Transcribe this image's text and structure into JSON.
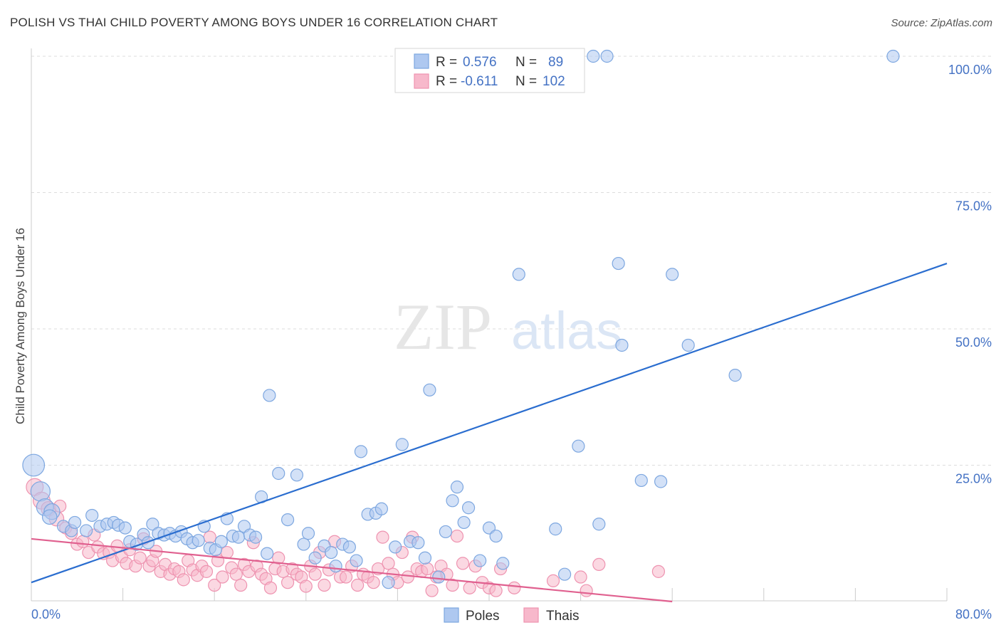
{
  "header": {
    "title": "POLISH VS THAI CHILD POVERTY AMONG BOYS UNDER 16 CORRELATION CHART",
    "source": "Source: ZipAtlas.com"
  },
  "watermark": {
    "zip": "ZIP",
    "atlas": "atlas"
  },
  "colors": {
    "poles_fill": "#aec8f0",
    "poles_stroke": "#7da7e0",
    "poles_line": "#2a6dcf",
    "thais_fill": "#f7b8cb",
    "thais_stroke": "#ee93b0",
    "thais_line": "#e0608f",
    "tick": "#4472c4",
    "grid": "#dddddd"
  },
  "legend": {
    "r_label": "R =",
    "n_label": "N =",
    "poles": {
      "r": "0.576",
      "n": "89"
    },
    "thais": {
      "r": "-0.611",
      "n": "102"
    }
  },
  "bottom_legend": {
    "poles": "Poles",
    "thais": "Thais"
  },
  "chart_data": {
    "type": "scatter",
    "title": "POLISH VS THAI CHILD POVERTY AMONG BOYS UNDER 16 CORRELATION CHART",
    "xlabel": "",
    "ylabel": "Child Poverty Among Boys Under 16",
    "xlim": [
      0,
      80
    ],
    "ylim": [
      0,
      100
    ],
    "x_tick_labels": [
      "0.0%",
      "80.0%"
    ],
    "y_ticks": [
      25,
      50,
      75,
      100
    ],
    "y_tick_labels": [
      "25.0%",
      "50.0%",
      "75.0%",
      "100.0%"
    ],
    "grid": true,
    "legend_position": "top-center",
    "series": [
      {
        "name": "Poles",
        "r": 0.576,
        "n": 89,
        "trend": [
          [
            0,
            3.5
          ],
          [
            80,
            62
          ]
        ],
        "points": [
          [
            0.2,
            25,
            18
          ],
          [
            0.8,
            20.2,
            16
          ],
          [
            1.2,
            17.3,
            14
          ],
          [
            1.8,
            16.5,
            13
          ],
          [
            1.6,
            15.5,
            12
          ],
          [
            2.8,
            13.8,
            10
          ],
          [
            3.5,
            13,
            10
          ],
          [
            3.8,
            14.5,
            10
          ],
          [
            4.8,
            13,
            10
          ],
          [
            5.3,
            15.8,
            10
          ],
          [
            6,
            13.8,
            10
          ],
          [
            6.6,
            14.2,
            10
          ],
          [
            7.2,
            14.5,
            10
          ],
          [
            7.6,
            14,
            10
          ],
          [
            8.2,
            13.5,
            10
          ],
          [
            8.6,
            11,
            10
          ],
          [
            9.2,
            10.5,
            10
          ],
          [
            9.8,
            12.3,
            10
          ],
          [
            10.2,
            10.8,
            10
          ],
          [
            10.6,
            14.2,
            10
          ],
          [
            11.1,
            12.5,
            10
          ],
          [
            11.6,
            12.2,
            10
          ],
          [
            12.1,
            12.5,
            10
          ],
          [
            12.6,
            12,
            10
          ],
          [
            13.1,
            12.8,
            10
          ],
          [
            13.6,
            11.5,
            10
          ],
          [
            14.1,
            10.8,
            10
          ],
          [
            14.6,
            11.2,
            10
          ],
          [
            15.1,
            13.8,
            10
          ],
          [
            15.6,
            9.8,
            10
          ],
          [
            16.1,
            9.5,
            10
          ],
          [
            16.6,
            11,
            10
          ],
          [
            17.1,
            15.2,
            10
          ],
          [
            17.6,
            12,
            10
          ],
          [
            18.1,
            11.8,
            10
          ],
          [
            18.6,
            13.8,
            10
          ],
          [
            19.1,
            12.2,
            10
          ],
          [
            19.6,
            11.8,
            10
          ],
          [
            20.1,
            19.2,
            10
          ],
          [
            20.6,
            8.8,
            10
          ],
          [
            20.8,
            37.8,
            10
          ],
          [
            21.6,
            23.5,
            10
          ],
          [
            22.4,
            15,
            10
          ],
          [
            23.2,
            23.2,
            10
          ],
          [
            23.8,
            10.5,
            10
          ],
          [
            24.2,
            12.5,
            10
          ],
          [
            24.8,
            8,
            10
          ],
          [
            25.6,
            10.2,
            10
          ],
          [
            26.2,
            9,
            10
          ],
          [
            26.6,
            6.5,
            10
          ],
          [
            27.2,
            10.5,
            10
          ],
          [
            27.8,
            10,
            10
          ],
          [
            28.4,
            7.5,
            10
          ],
          [
            28.8,
            27.5,
            10
          ],
          [
            29.4,
            16,
            10
          ],
          [
            30.1,
            16.2,
            10
          ],
          [
            30.6,
            17,
            10
          ],
          [
            31.2,
            3.5,
            10
          ],
          [
            31.8,
            10,
            10
          ],
          [
            32.4,
            28.8,
            10
          ],
          [
            33.1,
            11,
            10
          ],
          [
            33.8,
            10.8,
            10
          ],
          [
            34.4,
            8,
            10
          ],
          [
            34.8,
            38.8,
            10
          ],
          [
            35.6,
            4.5,
            10
          ],
          [
            36.2,
            12.8,
            10
          ],
          [
            36.8,
            18.5,
            10
          ],
          [
            37.2,
            21,
            10
          ],
          [
            37.8,
            14.5,
            10
          ],
          [
            38.2,
            17.2,
            10
          ],
          [
            40.0,
            13.5,
            10
          ],
          [
            40.6,
            12,
            10
          ],
          [
            39.2,
            7.5,
            10
          ],
          [
            41.2,
            7,
            10
          ],
          [
            42.6,
            60,
            10
          ],
          [
            45.8,
            13.3,
            10
          ],
          [
            46.6,
            5,
            10
          ],
          [
            47.8,
            28.5,
            10
          ],
          [
            49.6,
            14.2,
            10
          ],
          [
            49.1,
            100,
            10
          ],
          [
            50.3,
            100,
            10
          ],
          [
            51.3,
            62,
            10
          ],
          [
            51.6,
            47,
            10
          ],
          [
            53.3,
            22.2,
            10
          ],
          [
            55,
            22,
            10
          ],
          [
            56,
            60,
            10
          ],
          [
            57.4,
            47,
            10
          ],
          [
            61.5,
            41.5,
            10
          ],
          [
            75.3,
            100,
            10
          ]
        ]
      },
      {
        "name": "Thais",
        "r": -0.611,
        "n": 102,
        "trend": [
          [
            0,
            11.5
          ],
          [
            56,
            0
          ]
        ],
        "points": [
          [
            0.3,
            21,
            14
          ],
          [
            0.9,
            18.5,
            14
          ],
          [
            1.5,
            17,
            12
          ],
          [
            2.2,
            15.2,
            12
          ],
          [
            2.5,
            17.5,
            10
          ],
          [
            3,
            13.5,
            10
          ],
          [
            3.5,
            12.5,
            10
          ],
          [
            4,
            10.5,
            10
          ],
          [
            4.5,
            11,
            10
          ],
          [
            5,
            9,
            10
          ],
          [
            5.5,
            12.2,
            10
          ],
          [
            5.8,
            10,
            10
          ],
          [
            6.3,
            8.8,
            10
          ],
          [
            6.8,
            9,
            10
          ],
          [
            7.1,
            7.5,
            10
          ],
          [
            7.5,
            10.2,
            10
          ],
          [
            7.9,
            8.2,
            10
          ],
          [
            8.3,
            7,
            10
          ],
          [
            8.6,
            9.5,
            10
          ],
          [
            9.1,
            6.5,
            10
          ],
          [
            9.5,
            8,
            10
          ],
          [
            9.8,
            11.5,
            10
          ],
          [
            10.3,
            6.5,
            10
          ],
          [
            10.6,
            7.5,
            10
          ],
          [
            10.9,
            9.2,
            10
          ],
          [
            11.3,
            5.5,
            10
          ],
          [
            11.7,
            6.8,
            10
          ],
          [
            12.1,
            5,
            10
          ],
          [
            12.5,
            6,
            10
          ],
          [
            12.9,
            5.5,
            10
          ],
          [
            13.3,
            4,
            10
          ],
          [
            13.7,
            7.5,
            10
          ],
          [
            14.1,
            5.8,
            10
          ],
          [
            14.5,
            4.8,
            10
          ],
          [
            14.9,
            6.5,
            10
          ],
          [
            15.3,
            5.5,
            10
          ],
          [
            15.6,
            11.8,
            10
          ],
          [
            16,
            3,
            10
          ],
          [
            16.3,
            7.5,
            10
          ],
          [
            16.7,
            4.5,
            10
          ],
          [
            17.1,
            9,
            10
          ],
          [
            17.5,
            6.2,
            10
          ],
          [
            17.9,
            5,
            10
          ],
          [
            18.3,
            3,
            10
          ],
          [
            18.6,
            6.8,
            10
          ],
          [
            19,
            5.5,
            10
          ],
          [
            19.4,
            10.8,
            10
          ],
          [
            19.7,
            6.5,
            10
          ],
          [
            20.1,
            5,
            10
          ],
          [
            20.5,
            4.2,
            10
          ],
          [
            20.9,
            2.5,
            10
          ],
          [
            21.3,
            6,
            10
          ],
          [
            21.6,
            8,
            10
          ],
          [
            22,
            5.5,
            10
          ],
          [
            22.4,
            3.5,
            10
          ],
          [
            22.8,
            6,
            10
          ],
          [
            23.2,
            5,
            10
          ],
          [
            23.6,
            4.5,
            10
          ],
          [
            24,
            2.8,
            10
          ],
          [
            24.4,
            6.5,
            10
          ],
          [
            24.8,
            5,
            10
          ],
          [
            25.2,
            9,
            10
          ],
          [
            25.6,
            3,
            10
          ],
          [
            26,
            5.8,
            10
          ],
          [
            26.5,
            11,
            10
          ],
          [
            27,
            4.5,
            10
          ],
          [
            27.5,
            4.5,
            10
          ],
          [
            28,
            6.5,
            10
          ],
          [
            28.5,
            3,
            10
          ],
          [
            29,
            5,
            10
          ],
          [
            29.4,
            4.5,
            10
          ],
          [
            29.9,
            3.5,
            10
          ],
          [
            30.3,
            6,
            10
          ],
          [
            30.7,
            11.8,
            10
          ],
          [
            31.2,
            7,
            10
          ],
          [
            31.6,
            5,
            10
          ],
          [
            32,
            3.5,
            10
          ],
          [
            32.4,
            9,
            10
          ],
          [
            32.9,
            4.5,
            10
          ],
          [
            33.3,
            11.8,
            10
          ],
          [
            33.7,
            6,
            10
          ],
          [
            34.1,
            5.5,
            10
          ],
          [
            34.6,
            6,
            10
          ],
          [
            35,
            2,
            10
          ],
          [
            35.4,
            4.5,
            10
          ],
          [
            35.8,
            6.5,
            10
          ],
          [
            36.3,
            5,
            10
          ],
          [
            36.8,
            3,
            10
          ],
          [
            37.2,
            12,
            10
          ],
          [
            37.7,
            7,
            10
          ],
          [
            38.3,
            2.5,
            10
          ],
          [
            38.8,
            6.5,
            10
          ],
          [
            39.4,
            3.5,
            10
          ],
          [
            40,
            2.5,
            10
          ],
          [
            40.6,
            2,
            10
          ],
          [
            41,
            6,
            10
          ],
          [
            42.2,
            2.5,
            10
          ],
          [
            45.6,
            3.8,
            10
          ],
          [
            48,
            4.5,
            10
          ],
          [
            49.6,
            6.8,
            10
          ],
          [
            48.5,
            2,
            10
          ],
          [
            54.8,
            5.5,
            10
          ]
        ]
      }
    ]
  }
}
